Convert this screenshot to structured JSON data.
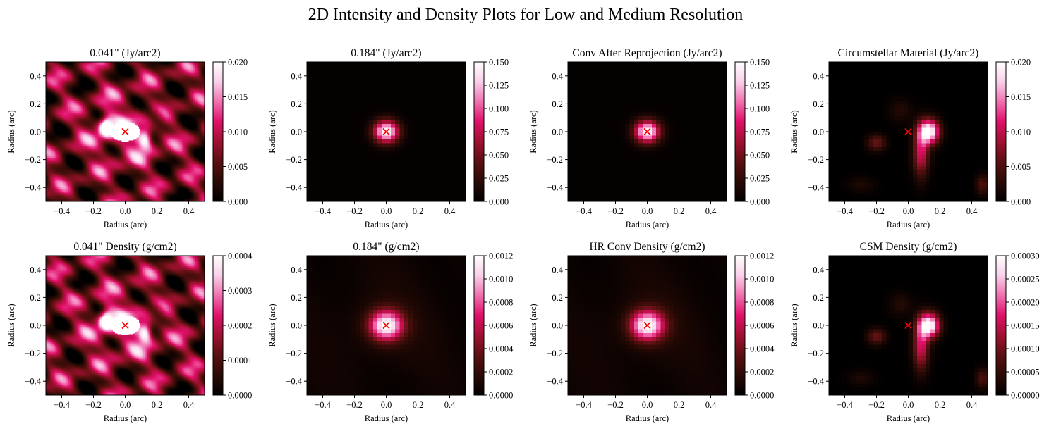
{
  "figure": {
    "suptitle": "2D Intensity and Density Plots for Low and Medium Resolution",
    "marker_color": "#ff0000",
    "colormap": [
      "#000000",
      "#2a0a05",
      "#5a1010",
      "#a01030",
      "#e0106a",
      "#f070b0",
      "#f8d0e8",
      "#ffffff"
    ]
  },
  "chart_data": [
    {
      "type": "heatmap",
      "title": "0.041\" (Jy/arc2)",
      "xlabel": "Radius (arc)",
      "ylabel": "Radius (arc)",
      "xlim": [
        -0.5,
        0.5
      ],
      "ylim": [
        -0.5,
        0.5
      ],
      "xticks": [
        "−0.4",
        "−0.2",
        "0.0",
        "0.2",
        "0.4"
      ],
      "yticks": [
        "0.4",
        "0.2",
        "0.0",
        "−0.2",
        "−0.4"
      ],
      "colorbar": {
        "vmin": 0,
        "vmax": 0.02,
        "ticks": [
          "0.000",
          "0.005",
          "0.010",
          "0.015",
          "0.020"
        ]
      },
      "pattern": "speckle",
      "grid": 140,
      "marker": {
        "x": 0.0,
        "y": 0.0,
        "symbol": "×"
      }
    },
    {
      "type": "heatmap",
      "title": "0.184\" (Jy/arc2)",
      "xlabel": "Radius (arc)",
      "ylabel": "Radius (arc)",
      "xlim": [
        -0.5,
        0.5
      ],
      "ylim": [
        -0.5,
        0.5
      ],
      "xticks": [
        "−0.4",
        "−0.2",
        "0.0",
        "0.2",
        "0.4"
      ],
      "yticks": [
        "0.4",
        "0.2",
        "0.0",
        "−0.2",
        "−0.4"
      ],
      "colorbar": {
        "vmin": 0,
        "vmax": 0.15,
        "ticks": [
          "0.000",
          "0.025",
          "0.050",
          "0.075",
          "0.100",
          "0.125",
          "0.150"
        ]
      },
      "pattern": "gauss_small",
      "grid": 36,
      "marker": {
        "x": 0.0,
        "y": 0.0,
        "symbol": "×"
      }
    },
    {
      "type": "heatmap",
      "title": "Conv After Reprojection (Jy/arc2)",
      "xlabel": "Radius (arc)",
      "ylabel": "Radius (arc)",
      "xlim": [
        -0.5,
        0.5
      ],
      "ylim": [
        -0.5,
        0.5
      ],
      "xticks": [
        "−0.4",
        "−0.2",
        "0.0",
        "0.2",
        "0.4"
      ],
      "yticks": [
        "0.4",
        "0.2",
        "0.0",
        "−0.2",
        "−0.4"
      ],
      "colorbar": {
        "vmin": 0,
        "vmax": 0.15,
        "ticks": [
          "0.000",
          "0.025",
          "0.050",
          "0.075",
          "0.100",
          "0.125",
          "0.150"
        ]
      },
      "pattern": "gauss_small",
      "grid": 36,
      "marker": {
        "x": 0.0,
        "y": 0.0,
        "symbol": "×"
      }
    },
    {
      "type": "heatmap",
      "title": "Circumstellar Material (Jy/arc2)",
      "xlabel": "Radius (arc)",
      "ylabel": "Radius (arc)",
      "xlim": [
        -0.5,
        0.5
      ],
      "ylim": [
        -0.5,
        0.5
      ],
      "xticks": [
        "−0.4",
        "−0.2",
        "0.0",
        "0.2",
        "0.4"
      ],
      "yticks": [
        "0.4",
        "0.2",
        "0.0",
        "−0.2",
        "−0.4"
      ],
      "colorbar": {
        "vmin": 0,
        "vmax": 0.02,
        "ticks": [
          "0.000",
          "0.005",
          "0.010",
          "0.015",
          "0.020"
        ]
      },
      "pattern": "csm",
      "grid": 36,
      "marker": {
        "x": 0.0,
        "y": 0.0,
        "symbol": "×"
      }
    },
    {
      "type": "heatmap",
      "title": "0.041\" Density (g/cm2)",
      "xlabel": "Radius (arc)",
      "ylabel": "Radius (arc)",
      "xlim": [
        -0.5,
        0.5
      ],
      "ylim": [
        -0.5,
        0.5
      ],
      "xticks": [
        "−0.4",
        "−0.2",
        "0.0",
        "0.2",
        "0.4"
      ],
      "yticks": [
        "0.4",
        "0.2",
        "0.0",
        "−0.2",
        "−0.4"
      ],
      "colorbar": {
        "vmin": 0,
        "vmax": 0.0004,
        "ticks": [
          "0.0000",
          "0.0001",
          "0.0002",
          "0.0003",
          "0.0004"
        ]
      },
      "pattern": "speckle",
      "grid": 140,
      "marker": {
        "x": 0.0,
        "y": 0.0,
        "symbol": "×"
      }
    },
    {
      "type": "heatmap",
      "title": "0.184\" (g/cm2)",
      "xlabel": "Radius (arc)",
      "ylabel": "Radius (arc)",
      "xlim": [
        -0.5,
        0.5
      ],
      "ylim": [
        -0.5,
        0.5
      ],
      "xticks": [
        "−0.4",
        "−0.2",
        "0.0",
        "0.2",
        "0.4"
      ],
      "yticks": [
        "0.4",
        "0.2",
        "0.0",
        "−0.2",
        "−0.4"
      ],
      "colorbar": {
        "vmin": 0,
        "vmax": 0.0012,
        "ticks": [
          "0.0000",
          "0.0002",
          "0.0004",
          "0.0006",
          "0.0008",
          "0.0010",
          "0.0012"
        ]
      },
      "pattern": "gauss_large",
      "grid": 36,
      "marker": {
        "x": 0.0,
        "y": 0.0,
        "symbol": "×"
      }
    },
    {
      "type": "heatmap",
      "title": "HR Conv Density (g/cm2)",
      "xlabel": "Radius (arc)",
      "ylabel": "Radius (arc)",
      "xlim": [
        -0.5,
        0.5
      ],
      "ylim": [
        -0.5,
        0.5
      ],
      "xticks": [
        "−0.4",
        "−0.2",
        "0.0",
        "0.2",
        "0.4"
      ],
      "yticks": [
        "0.4",
        "0.2",
        "0.0",
        "−0.2",
        "−0.4"
      ],
      "colorbar": {
        "vmin": 0,
        "vmax": 0.0012,
        "ticks": [
          "0.0000",
          "0.0002",
          "0.0004",
          "0.0006",
          "0.0008",
          "0.0010",
          "0.0012"
        ]
      },
      "pattern": "gauss_large",
      "grid": 36,
      "marker": {
        "x": 0.0,
        "y": 0.0,
        "symbol": "×"
      }
    },
    {
      "type": "heatmap",
      "title": "CSM Density (g/cm2)",
      "xlabel": "Radius (arc)",
      "ylabel": "Radius (arc)",
      "xlim": [
        -0.5,
        0.5
      ],
      "ylim": [
        -0.5,
        0.5
      ],
      "xticks": [
        "−0.4",
        "−0.2",
        "0.0",
        "0.2",
        "0.4"
      ],
      "yticks": [
        "0.4",
        "0.2",
        "0.0",
        "−0.2",
        "−0.4"
      ],
      "colorbar": {
        "vmin": 0,
        "vmax": 0.0003,
        "ticks": [
          "0.00000",
          "0.00005",
          "0.00010",
          "0.00015",
          "0.00020",
          "0.00025",
          "0.00030"
        ]
      },
      "pattern": "csm",
      "grid": 36,
      "marker": {
        "x": 0.0,
        "y": 0.0,
        "symbol": "×"
      }
    }
  ]
}
